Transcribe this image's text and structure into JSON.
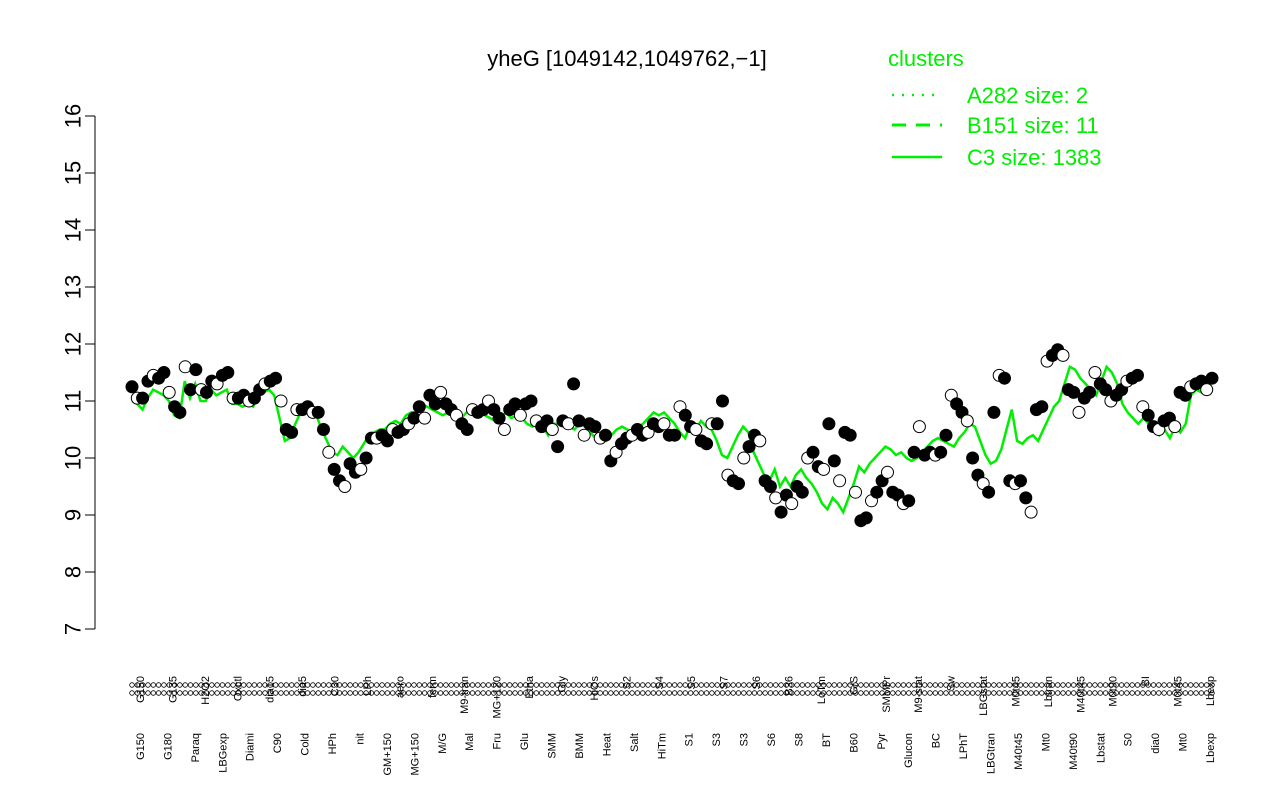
{
  "chart_data": {
    "type": "line",
    "title": "yheG [1049142,1049762,−1]",
    "ylim": [
      7,
      16
    ],
    "y_ticks": [
      "7",
      "8",
      "9",
      "10",
      "11",
      "12",
      "13",
      "14",
      "15",
      "16"
    ],
    "x_tick_labels_top": [
      "G150",
      "G135",
      "H2O2",
      "Oxctl",
      "dia15",
      "dia5",
      "C30",
      "LPh",
      "aero",
      "ferm",
      "M9-tran",
      "MG+120",
      "Etha",
      "Gly",
      "HiOs",
      "S2",
      "S4",
      "S5",
      "S7",
      "S6",
      "B36",
      "LoTm",
      "G/S",
      "SMMPr",
      "M9-stat",
      "Sw",
      "LBGstat",
      "M0t45",
      "Lbtran",
      "M40t45",
      "M0t90",
      "BI",
      "M0t45",
      "Lbexp"
    ],
    "x_tick_labels_bottom": [
      "G150",
      "G180",
      "Paraq",
      "LBGexp",
      "Diami",
      "C90",
      "Cold",
      "HPh",
      "nit",
      "GM+150",
      "MG+150",
      "M/G",
      "Mal",
      "Fru",
      "Glu",
      "SMM",
      "BMM",
      "Heat",
      "Salt",
      "HiTm",
      "S1",
      "S3",
      "S3",
      "S6",
      "S8",
      "BT",
      "B60",
      "Pyr",
      "Glucon",
      "BC",
      "LPhT",
      "LBGtran",
      "M40t45",
      "Mt0",
      "M40t90",
      "Lbstat",
      "S0",
      "dia0",
      "Mt0",
      "Lbexp"
    ],
    "legend": {
      "title": "clusters",
      "position": "top-right",
      "entries": [
        {
          "label": "A282 size: 2",
          "style": "dotted"
        },
        {
          "label": "B151 size: 11",
          "style": "dashed"
        },
        {
          "label": "C3 size: 1383",
          "style": "solid"
        }
      ]
    },
    "colors": {
      "cluster_line": "#00ee00",
      "points_fill": "#000000",
      "points_open": "#ffffff"
    },
    "points": [
      11.25,
      11.05,
      11.05,
      11.35,
      11.45,
      11.4,
      11.5,
      11.15,
      10.9,
      10.8,
      11.6,
      11.2,
      11.55,
      11.2,
      11.15,
      11.35,
      11.3,
      11.45,
      11.5,
      11.05,
      11.05,
      11.1,
      11.0,
      11.05,
      11.2,
      11.3,
      11.35,
      11.4,
      11.0,
      10.5,
      10.45,
      10.85,
      10.85,
      10.9,
      10.8,
      10.8,
      10.5,
      10.1,
      9.8,
      9.6,
      9.5,
      9.9,
      9.75,
      9.8,
      10.0,
      10.35,
      10.35,
      10.4,
      10.3,
      10.5,
      10.45,
      10.5,
      10.6,
      10.7,
      10.9,
      10.7,
      11.1,
      10.95,
      11.15,
      10.95,
      10.85,
      10.75,
      10.6,
      10.5,
      10.85,
      10.8,
      10.85,
      11.0,
      10.85,
      10.7,
      10.5,
      10.85,
      10.95,
      10.75,
      10.95,
      11.0,
      10.65,
      10.55,
      10.65,
      10.5,
      10.2,
      10.65,
      10.6,
      11.3,
      10.65,
      10.4,
      10.6,
      10.55,
      10.35,
      10.4,
      9.95,
      10.1,
      10.25,
      10.35,
      10.4,
      10.5,
      10.4,
      10.45,
      10.6,
      10.55,
      10.6,
      10.4,
      10.4,
      10.9,
      10.75,
      10.55,
      10.5,
      10.3,
      10.25,
      10.6,
      10.6,
      11.0,
      9.7,
      9.6,
      9.55,
      10.0,
      10.2,
      10.4,
      10.3,
      9.6,
      9.5,
      9.3,
      9.05,
      9.35,
      9.2,
      9.5,
      9.4,
      10.0,
      10.1,
      9.85,
      9.8,
      10.6,
      9.95,
      9.6,
      10.45,
      10.4,
      9.4,
      8.9,
      8.95,
      9.25,
      9.4,
      9.6,
      9.75,
      9.4,
      9.35,
      9.2,
      9.25,
      10.1,
      10.55,
      10.05,
      10.1,
      10.05,
      10.1,
      10.4,
      11.1,
      10.95,
      10.8,
      10.65,
      10.0,
      9.7,
      9.55,
      9.4,
      10.8,
      11.45,
      11.4,
      9.6,
      9.55,
      9.6,
      9.3,
      9.05,
      10.85,
      10.9,
      11.7,
      11.8,
      11.9,
      11.8,
      11.2,
      11.15,
      10.8,
      11.05,
      11.15,
      11.5,
      11.3,
      11.2,
      11.0,
      11.1,
      11.2,
      11.35,
      11.4,
      11.45,
      10.9,
      10.75,
      10.55,
      10.5,
      10.65,
      10.7,
      10.55,
      11.15,
      11.1,
      11.25,
      11.3,
      11.35,
      11.2,
      11.4
    ],
    "cluster_line_values": [
      11.0,
      10.95,
      10.85,
      11.05,
      11.2,
      11.15,
      11.1,
      11.0,
      10.75,
      10.7,
      11.35,
      11.05,
      11.3,
      11.0,
      11.0,
      11.2,
      11.1,
      11.15,
      11.2,
      10.95,
      10.95,
      10.9,
      10.95,
      10.9,
      11.1,
      11.15,
      11.2,
      11.1,
      10.7,
      10.3,
      10.35,
      10.6,
      10.8,
      10.85,
      10.8,
      10.75,
      10.5,
      10.3,
      10.1,
      10.05,
      10.2,
      10.1,
      10.0,
      10.1,
      10.25,
      10.4,
      10.45,
      10.5,
      10.5,
      10.6,
      10.65,
      10.6,
      10.75,
      10.8,
      10.8,
      10.95,
      10.9,
      10.85,
      10.8,
      10.75,
      10.8,
      10.7,
      10.65,
      10.75,
      10.85,
      10.8,
      10.8,
      10.75,
      10.7,
      10.65,
      10.7,
      10.8,
      10.7,
      10.75,
      10.7,
      10.6,
      10.55,
      10.6,
      10.55,
      10.4,
      10.6,
      10.6,
      10.7,
      10.55,
      10.5,
      10.6,
      10.55,
      10.45,
      10.35,
      10.3,
      10.3,
      10.4,
      10.5,
      10.55,
      10.5,
      10.45,
      10.55,
      10.6,
      10.7,
      10.8,
      10.75,
      10.8,
      10.7,
      10.6,
      10.45,
      10.35,
      10.6,
      10.5,
      10.65,
      10.55,
      10.5,
      10.3,
      10.05,
      10.0,
      10.2,
      10.4,
      10.55,
      10.45,
      10.1,
      9.9,
      9.7,
      9.6,
      9.8,
      9.5,
      9.65,
      9.5,
      9.7,
      9.8,
      9.65,
      9.55,
      9.4,
      9.2,
      9.1,
      9.3,
      9.2,
      9.05,
      9.3,
      9.55,
      9.85,
      9.75,
      9.9,
      10.0,
      10.1,
      10.2,
      10.15,
      10.05,
      10.1,
      10.0,
      9.95,
      10.0,
      10.1,
      10.2,
      10.3,
      10.35,
      10.3,
      10.25,
      10.2,
      10.35,
      10.45,
      10.6,
      10.55,
      10.3,
      10.05,
      9.9,
      9.95,
      10.15,
      10.5,
      10.85,
      10.3,
      10.25,
      10.35,
      10.4,
      10.3,
      10.5,
      10.7,
      10.9,
      11.0,
      11.3,
      11.6,
      11.55,
      11.4,
      11.3,
      11.2,
      11.1,
      11.35,
      11.6,
      11.5,
      11.3,
      10.95,
      10.8,
      10.7,
      10.6,
      10.7,
      10.6,
      10.55,
      10.4,
      10.5,
      10.35,
      10.55,
      10.45,
      10.6,
      11.1,
      11.2,
      11.15,
      11.2,
      11.25
    ]
  }
}
